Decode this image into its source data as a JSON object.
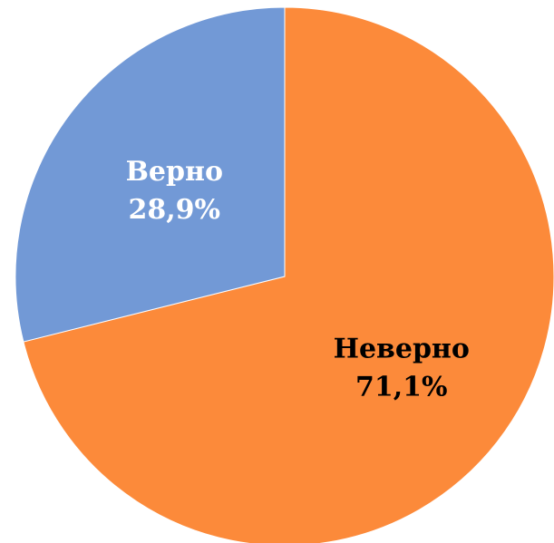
{
  "chart_data": {
    "type": "pie",
    "title": "",
    "start": "12 o'clock, clockwise",
    "slices": [
      {
        "label": "Неверно",
        "value": 71.1,
        "percent_label": "71,1%",
        "color": "#FC8A3A",
        "text_color": "#000000"
      },
      {
        "label": "Верно",
        "value": 28.9,
        "percent_label": "28,9%",
        "color": "#7299D6",
        "text_color": "#FFFFFF"
      }
    ],
    "legend": "none"
  }
}
